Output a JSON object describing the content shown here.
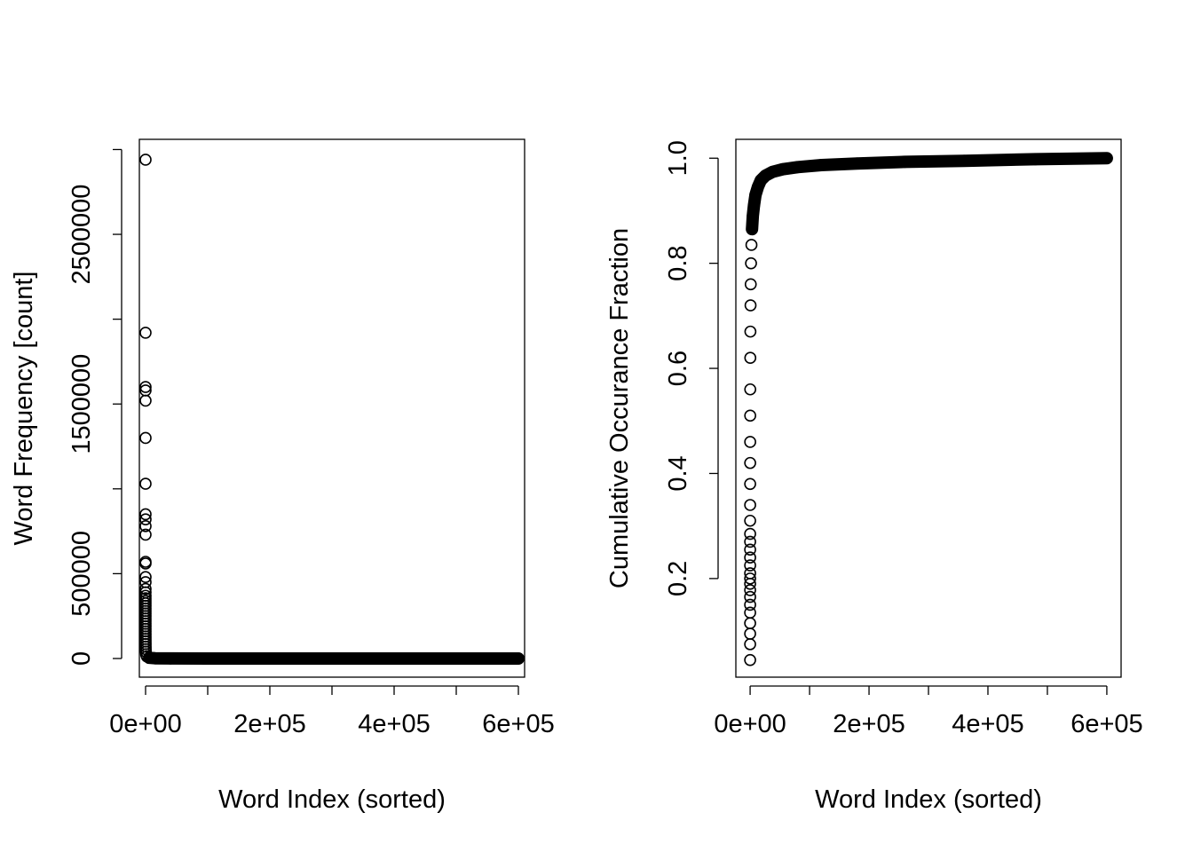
{
  "chart_data": [
    {
      "type": "scatter",
      "xlabel": "Word Index (sorted)",
      "ylabel": "Word Frequency [count]",
      "xlim": [
        -10000,
        610000
      ],
      "ylim": [
        -110000,
        3060000
      ],
      "xticks": [
        0,
        100000,
        200000,
        300000,
        400000,
        500000,
        600000
      ],
      "xtick_labels": [
        "0e+00",
        "2e+05",
        "4e+05",
        "6e+05"
      ],
      "xtick_label_values": [
        0,
        200000,
        400000,
        600000
      ],
      "yticks": [
        0,
        500000,
        1000000,
        1500000,
        2000000,
        2500000,
        3000000
      ],
      "ytick_labels": [
        "0",
        "500000",
        "1500000",
        "2500000"
      ],
      "ytick_label_values": [
        0,
        500000,
        1500000,
        2500000
      ],
      "marker": "open-circle",
      "series": [
        {
          "points": [
            [
              0,
              2940000
            ],
            [
              1,
              1920000
            ],
            [
              2,
              1600000
            ],
            [
              3,
              1580000
            ],
            [
              4,
              1520000
            ],
            [
              5,
              1300000
            ],
            [
              6,
              1030000
            ],
            [
              7,
              850000
            ],
            [
              8,
              820000
            ],
            [
              9,
              780000
            ],
            [
              10,
              730000
            ],
            [
              11,
              570000
            ],
            [
              12,
              560000
            ],
            [
              13,
              480000
            ],
            [
              14,
              450000
            ],
            [
              15,
              410000
            ],
            [
              16,
              390000
            ],
            [
              17,
              370000
            ],
            [
              18,
              355000
            ],
            [
              19,
              340000
            ],
            [
              20,
              325000
            ],
            [
              22,
              310000
            ],
            [
              24,
              295000
            ],
            [
              26,
              280000
            ],
            [
              28,
              265000
            ],
            [
              30,
              250000
            ],
            [
              33,
              235000
            ],
            [
              36,
              220000
            ],
            [
              40,
              205000
            ],
            [
              45,
              190000
            ],
            [
              50,
              175000
            ],
            [
              57,
              160000
            ],
            [
              65,
              145000
            ],
            [
              75,
              130000
            ],
            [
              90,
              115000
            ],
            [
              110,
              100000
            ],
            [
              140,
              85000
            ],
            [
              180,
              70000
            ],
            [
              250,
              55000
            ],
            [
              400,
              40000
            ],
            [
              800,
              25000
            ],
            [
              2000,
              12000
            ],
            [
              6000,
              4000
            ],
            [
              15000,
              1500
            ],
            [
              40000,
              400
            ],
            [
              100000,
              100
            ],
            [
              200000,
              20
            ],
            [
              400000,
              5
            ],
            [
              600000,
              1
            ]
          ]
        }
      ]
    },
    {
      "type": "scatter",
      "xlabel": "Word Index (sorted)",
      "ylabel": "Cumulative Occurance Fraction",
      "xlim": [
        -24000,
        624000
      ],
      "ylim": [
        0.0123,
        1.0359
      ],
      "xticks": [
        0,
        100000,
        200000,
        300000,
        400000,
        500000,
        600000
      ],
      "xtick_labels": [
        "0e+00",
        "2e+05",
        "4e+05",
        "6e+05"
      ],
      "xtick_label_values": [
        0,
        200000,
        400000,
        600000
      ],
      "yticks": [
        0.2,
        0.4,
        0.6,
        0.8,
        1.0
      ],
      "ytick_labels": [
        "0.2",
        "0.4",
        "0.6",
        "0.8",
        "1.0"
      ],
      "marker": "open-circle",
      "series": [
        {
          "points": [
            [
              0,
              0.045
            ],
            [
              1,
              0.075
            ],
            [
              2,
              0.095
            ],
            [
              3,
              0.115
            ],
            [
              4,
              0.135
            ],
            [
              5,
              0.15
            ],
            [
              6,
              0.165
            ],
            [
              7,
              0.178
            ],
            [
              8,
              0.19
            ],
            [
              9,
              0.2
            ],
            [
              10,
              0.21
            ],
            [
              12,
              0.225
            ],
            [
              14,
              0.24
            ],
            [
              17,
              0.255
            ],
            [
              20,
              0.27
            ],
            [
              24,
              0.285
            ],
            [
              30,
              0.31
            ],
            [
              40,
              0.34
            ],
            [
              55,
              0.38
            ],
            [
              75,
              0.42
            ],
            [
              100,
              0.46
            ],
            [
              140,
              0.51
            ],
            [
              200,
              0.56
            ],
            [
              300,
              0.62
            ],
            [
              450,
              0.67
            ],
            [
              700,
              0.72
            ],
            [
              1000,
              0.76
            ],
            [
              1500,
              0.8
            ],
            [
              2200,
              0.835
            ],
            [
              3200,
              0.865
            ],
            [
              4500,
              0.89
            ],
            [
              6500,
              0.91
            ],
            [
              9000,
              0.93
            ],
            [
              13000,
              0.945
            ],
            [
              18000,
              0.958
            ],
            [
              26000,
              0.967
            ],
            [
              38000,
              0.974
            ],
            [
              55000,
              0.979
            ],
            [
              80000,
              0.983
            ],
            [
              120000,
              0.987
            ],
            [
              180000,
              0.99
            ],
            [
              260000,
              0.993
            ],
            [
              360000,
              0.995
            ],
            [
              480000,
              0.998
            ],
            [
              600000,
              1.0
            ]
          ]
        }
      ]
    }
  ]
}
